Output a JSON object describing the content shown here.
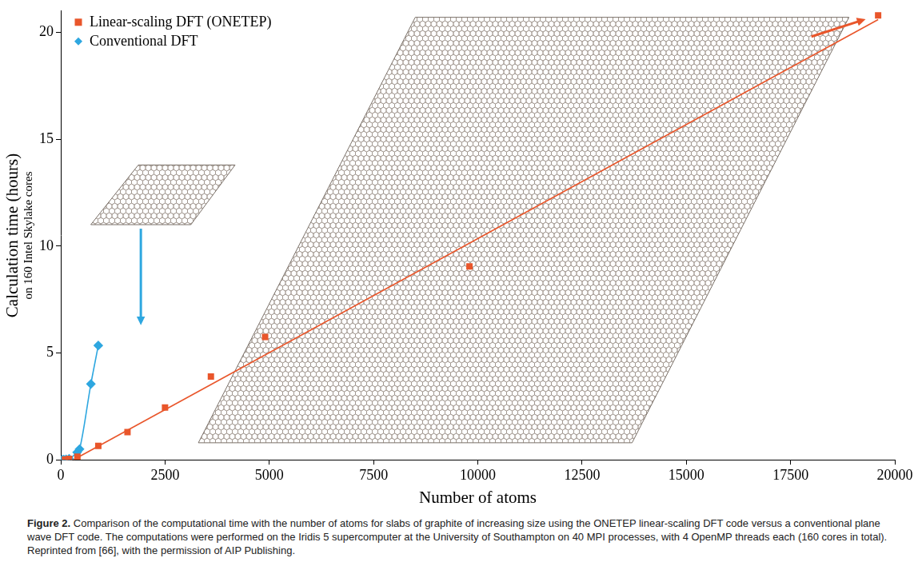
{
  "chart_data": {
    "type": "scatter",
    "ylabel": "Calculation time (hours)",
    "ylabel_sub": "on 160 Intel Skylake cores",
    "xlabel": "Number of atoms",
    "caption_label": "Figure 2.",
    "caption": "Comparison of the computational time with the number of atoms for slabs of graphite of increasing size using the ONETEP linear-scaling DFT code versus a conventional plane wave DFT code. The computations were performed on the Iridis 5 supercomputer at the University of Southampton on 40 MPI processes, with 4 OpenMP threads each (160 cores in total). Reprinted from [66], with the permission of AIP Publishing.",
    "series": [
      {
        "name": "Linear-scaling DFT (ONETEP)",
        "color": "#e9562b",
        "marker": "square",
        "line_style": "none",
        "x": [
          100,
          200,
          400,
          900,
          1600,
          2500,
          3600,
          4900,
          9800,
          19600
        ],
        "values": [
          0.02,
          0.05,
          0.15,
          0.65,
          1.3,
          2.45,
          3.9,
          5.75,
          9.05,
          20.8
        ]
      },
      {
        "name": "Conventional DFT",
        "color": "#2ea7e0",
        "marker": "diamond",
        "line_style": "solid",
        "x": [
          32,
          72,
          128,
          200,
          392,
          450,
          722,
          900
        ],
        "values": [
          0.0,
          0.01,
          0.02,
          0.05,
          0.35,
          0.5,
          3.55,
          5.35
        ]
      },
      {
        "color": "#e9562b",
        "marker": "none",
        "line_style": "solid",
        "x": [
          300,
          19600
        ],
        "values": [
          0,
          20.6
        ]
      }
    ],
    "xlim": [
      0,
      20000
    ],
    "xticks": [
      0,
      2500,
      5000,
      7500,
      10000,
      12500,
      15000,
      17500,
      20000
    ],
    "ylim": [
      0,
      21
    ],
    "yticks": [
      0,
      5,
      10,
      15,
      20
    ],
    "grid": false,
    "legend": "upper left"
  }
}
